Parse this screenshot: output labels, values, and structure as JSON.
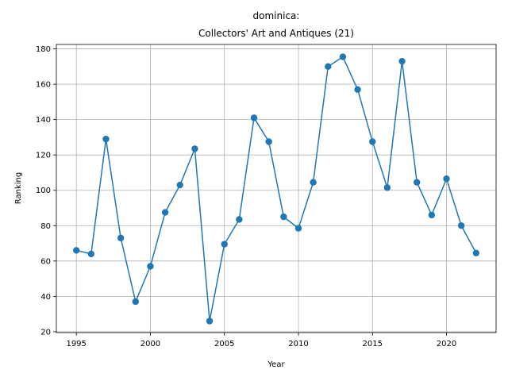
{
  "chart_data": {
    "type": "line",
    "title_line1": "dominica:",
    "title_line2": "Collectors' Art and Antiques (21)",
    "xlabel": "Year",
    "ylabel": "Ranking",
    "xlim": [
      1993.65,
      2023.35
    ],
    "ylim": [
      19.5,
      182.5
    ],
    "xticks": [
      1995,
      2000,
      2005,
      2010,
      2015,
      2020
    ],
    "yticks": [
      20,
      40,
      60,
      80,
      100,
      120,
      140,
      160,
      180
    ],
    "grid": true,
    "legend": false,
    "series": [
      {
        "color": "#1f77b4",
        "marker": "circle",
        "x": [
          1995,
          1996,
          1997,
          1998,
          1999,
          2000,
          2001,
          2002,
          2003,
          2004,
          2005,
          2006,
          2007,
          2008,
          2009,
          2010,
          2011,
          2012,
          2013,
          2014,
          2015,
          2016,
          2017,
          2018,
          2019,
          2020,
          2021,
          2022
        ],
        "y": [
          66,
          64,
          129,
          73,
          37,
          57,
          87.5,
          103,
          123.5,
          26,
          69.5,
          83.5,
          141,
          127.5,
          85,
          78.5,
          104.5,
          170,
          175.5,
          157,
          127.5,
          101.5,
          173,
          104.5,
          86,
          106.5,
          80,
          64.5
        ]
      }
    ]
  }
}
